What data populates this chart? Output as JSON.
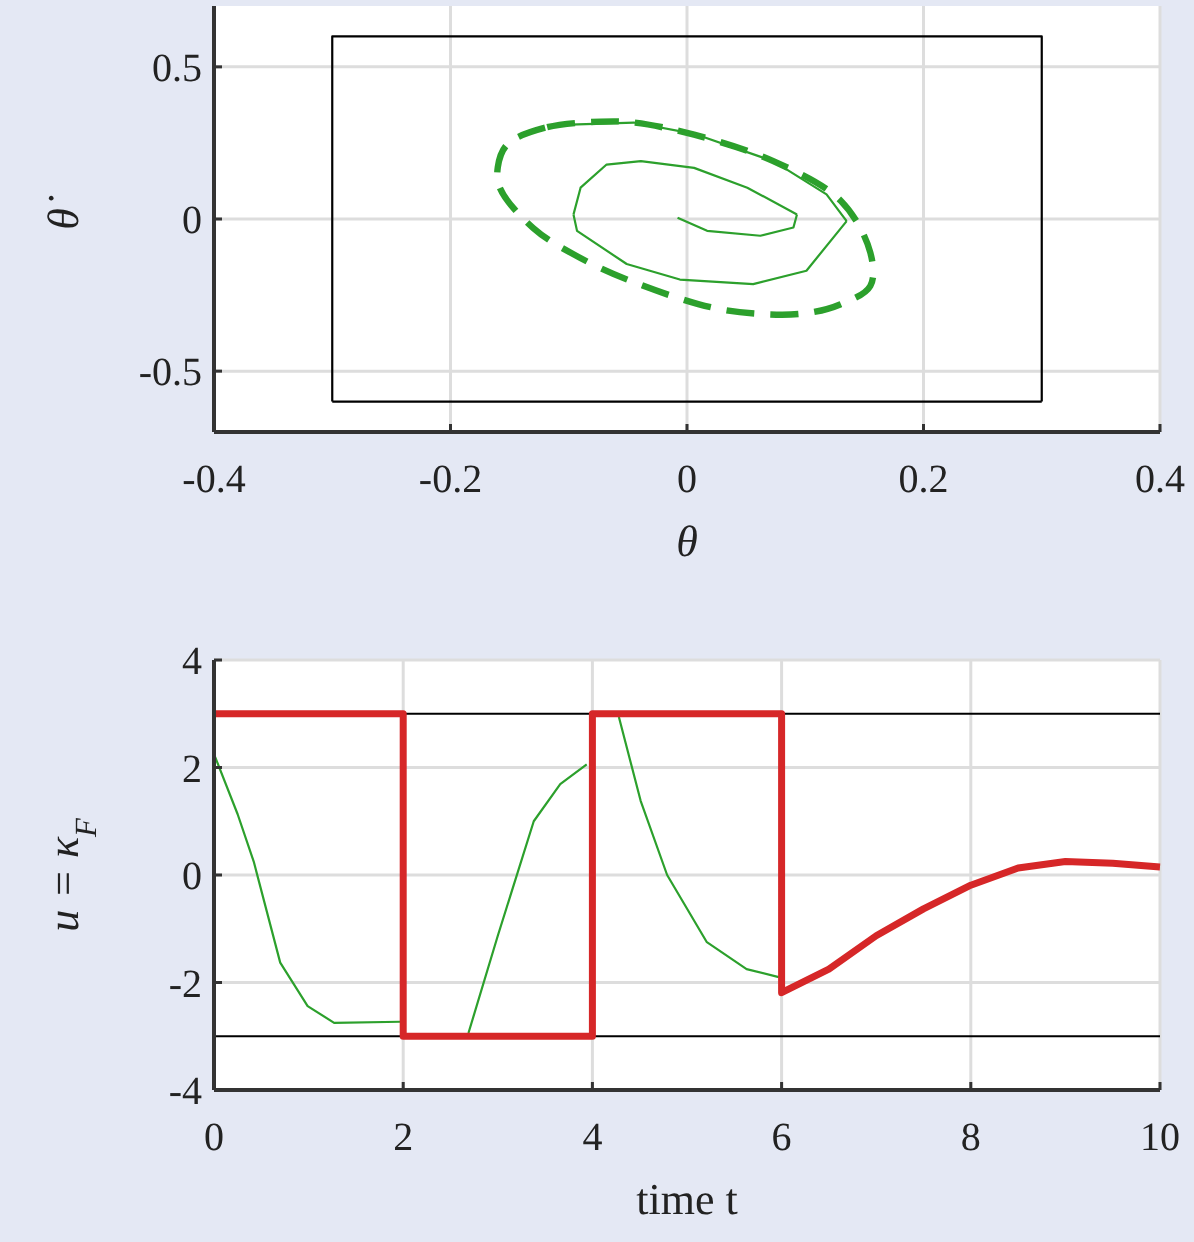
{
  "chart_data": [
    {
      "type": "line",
      "xlabel": "θ",
      "ylabel": "θ̇",
      "xlim": [
        -0.4,
        0.4
      ],
      "ylim": [
        -0.7,
        0.7
      ],
      "xticks": [
        -0.4,
        -0.2,
        0,
        0.2,
        0.4
      ],
      "yticks": [
        -0.5,
        0,
        0.5
      ],
      "grid": true,
      "series": [
        {
          "color": "#000000",
          "line_style": "solid",
          "x": [
            -0.3,
            -0.3,
            0.3,
            0.3
          ],
          "values": [
            -0.6,
            0.6,
            0.6,
            -0.6
          ]
        },
        {
          "color": "#000000",
          "line_style": "solid",
          "x": [
            -0.3,
            0.3
          ],
          "values": [
            -0.6,
            -0.6
          ]
        },
        {
          "color": "#2ca02c",
          "line_style": "solid",
          "x": [
            -0.099,
            -0.045,
            0.006,
            0.073,
            0.118,
            0.135
          ],
          "values": [
            0.31,
            0.317,
            0.28,
            0.19,
            0.081,
            -0.007
          ]
        },
        {
          "color": "#2ca02c",
          "line_style": "solid",
          "x": [
            -0.096,
            -0.093,
            -0.051,
            -0.006,
            0.056,
            0.101,
            0.135
          ],
          "values": [
            0.015,
            -0.039,
            -0.148,
            -0.199,
            -0.214,
            -0.17,
            -0.007
          ]
        },
        {
          "color": "#2ca02c",
          "line_style": "solid",
          "x": [
            -0.096,
            -0.09,
            -0.068,
            -0.039,
            0.006,
            0.051,
            0.093
          ],
          "values": [
            0.015,
            0.103,
            0.179,
            0.19,
            0.168,
            0.103,
            0.015
          ]
        },
        {
          "color": "#2ca02c",
          "line_style": "solid",
          "x": [
            -0.008,
            0.017,
            0.062,
            0.09,
            0.093
          ],
          "values": [
            0.004,
            -0.039,
            -0.055,
            -0.028,
            0.015
          ]
        }
      ]
    },
    {
      "type": "line",
      "xlabel": "time t",
      "ylabel": "u = κ$_{F}$",
      "xlim": [
        0,
        10
      ],
      "ylim": [
        -4,
        4
      ],
      "xticks": [
        0,
        2,
        4,
        6,
        8,
        10
      ],
      "yticks": [
        -4,
        -2,
        0,
        2,
        4
      ],
      "grid": true,
      "ref_lines": [
        {
          "axis": "y",
          "value": 3,
          "color": "#000000"
        },
        {
          "axis": "y",
          "value": -3,
          "color": "#000000"
        }
      ],
      "series": [
        {
          "color": "#2ca02c",
          "line_style": "solid",
          "x": [
            0,
            0.25,
            0.42,
            0.7,
            0.99,
            1.27,
            1.97,
            2.3,
            2.69,
            3.0,
            3.38,
            3.66,
            3.94,
            4.1,
            4.28,
            4.51,
            4.79,
            5.21,
            5.63,
            5.97
          ],
          "values": [
            2.25,
            1.13,
            0.25,
            -1.63,
            -2.44,
            -2.75,
            -2.73,
            null,
            -2.94,
            -1.13,
            1.0,
            1.69,
            2.06,
            null,
            2.94,
            1.38,
            0,
            -1.25,
            -1.75,
            -1.9
          ]
        },
        {
          "color": "#d62728",
          "line_style": "solid",
          "x": [
            0,
            2,
            2,
            4,
            4,
            6,
            6,
            6.5,
            7,
            7.5,
            8,
            8.5,
            9,
            9.5,
            10
          ],
          "values": [
            3,
            3,
            -3,
            -3,
            3,
            3,
            -2.19,
            -1.75,
            -1.13,
            -0.63,
            -0.19,
            0.13,
            0.25,
            0.22,
            0.15
          ]
        }
      ]
    }
  ]
}
